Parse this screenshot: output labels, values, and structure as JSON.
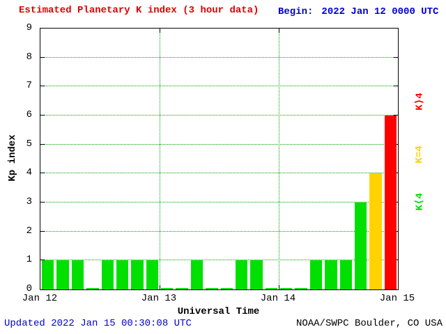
{
  "header": {
    "title": "Estimated Planetary K index (3 hour data)",
    "begin_label": "Begin:",
    "begin_value": "2022 Jan 12 0000 UTC"
  },
  "footer": {
    "updated": "Updated 2022 Jan 15 00:30:08 UTC",
    "source": "NOAA/SWPC Boulder, CO USA"
  },
  "chart_data": {
    "type": "bar",
    "title": "Estimated Planetary K index (3 hour data)",
    "xlabel": "Universal Time",
    "ylabel": "Kp index",
    "ylim": [
      0,
      9
    ],
    "y_ticks": [
      0,
      1,
      2,
      3,
      4,
      5,
      6,
      7,
      8,
      9
    ],
    "x_tick_labels": [
      "Jan 12",
      "Jan 13",
      "Jan 14",
      "Jan 15"
    ],
    "bin_hours": 3,
    "values": [
      1,
      1,
      1,
      0,
      1,
      1,
      1,
      1,
      0,
      0,
      1,
      0,
      0,
      1,
      1,
      0,
      0,
      0,
      1,
      1,
      1,
      3,
      4,
      6
    ],
    "series": [
      {
        "date": "2022 Jan 12",
        "values": [
          1,
          1,
          1,
          0,
          1,
          1,
          1,
          1
        ]
      },
      {
        "date": "2022 Jan 13",
        "values": [
          0,
          0,
          1,
          0,
          0,
          1,
          1,
          0
        ]
      },
      {
        "date": "2022 Jan 14",
        "values": [
          0,
          0,
          1,
          1,
          1,
          3,
          4,
          6
        ]
      }
    ],
    "legend": {
      "high": "K⟩4",
      "mid": "K=4",
      "low": "K⟨4"
    },
    "legend_position": "right, rotated 90deg",
    "color_rule": "green when K<4, yellow when K=4, red when K>4",
    "colors": {
      "low": "#00e000",
      "mid": "#ffd300",
      "high": "#ff0000",
      "grid": "#00a000",
      "title_text": "#dd0000",
      "timestamp_text": "#0000cc"
    },
    "grid": "dotted horizontal lines at each integer Kp, dotted vertical lines at day boundaries"
  }
}
